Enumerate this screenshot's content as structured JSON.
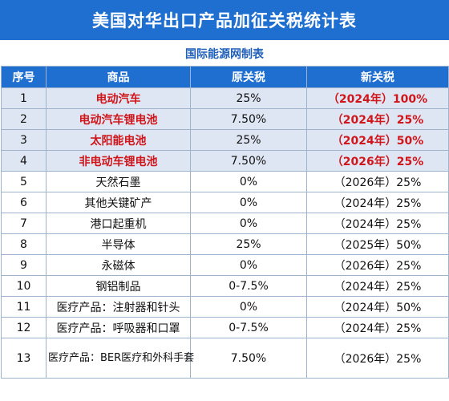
{
  "title": "美国对华出口产品加征关税统计表",
  "subtitle": "国际能源网制表",
  "headers": [
    "序号",
    "商品",
    "原关税",
    "新关税"
  ],
  "rows": [
    {
      "no": "1",
      "item": "电动汽车",
      "old": "25%",
      "new": "（2024年）100%"
    },
    {
      "no": "2",
      "item": "电动汽车锂电池",
      "old": "7.50%",
      "new": "（2024年）25%"
    },
    {
      "no": "3",
      "item": "太阳能电池",
      "old": "25%",
      "new": "（2024年）50%"
    },
    {
      "no": "4",
      "item": "非电动车锂电池",
      "old": "7.50%",
      "new": "（2026年）25%"
    },
    {
      "no": "5",
      "item": "天然石墨",
      "old": "0%",
      "new": "（2026年）25%"
    },
    {
      "no": "6",
      "item": "其他关键矿产",
      "old": "0%",
      "new": "（2024年）25%"
    },
    {
      "no": "7",
      "item": "港口起重机",
      "old": "0%",
      "new": "（2024年）25%"
    },
    {
      "no": "8",
      "item": "半导体",
      "old": "25%",
      "new": "（2025年）50%"
    },
    {
      "no": "9",
      "item": "永磁体",
      "old": "0%",
      "new": "（2026年）25%"
    },
    {
      "no": "10",
      "item": "钢铝制品",
      "old": "0-7.5%",
      "new": "（2024年）25%"
    },
    {
      "no": "11",
      "item": "医疗产品：注射器和针头",
      "old": "0%",
      "new": "（2024年）50%"
    },
    {
      "no": "12",
      "item": "医疗产品：呼吸器和口罩",
      "old": "0-7.5%",
      "new": "（2024年）25%"
    },
    {
      "no": "13",
      "item": "医疗产品：BER医疗和外科手套",
      "old": "7.50%",
      "new": "（2026年）25%"
    }
  ],
  "colors": {
    "header_blue": "#1f6fd1",
    "highlight_row": "#dfe6f3",
    "highlight_text": "#d0161b"
  }
}
